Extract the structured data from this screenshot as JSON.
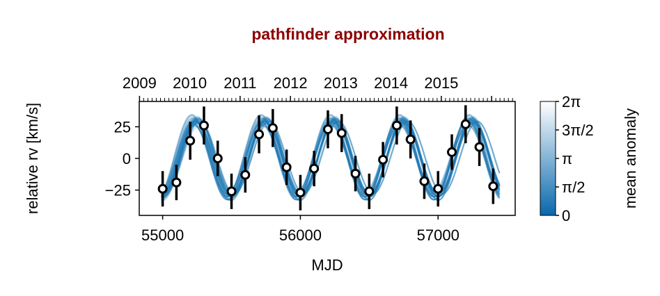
{
  "chart_data": {
    "type": "scatter",
    "title": "pathfinder approximation",
    "xlabel": "MJD",
    "ylabel": "relative rv [km/s]",
    "xlim": [
      54830,
      57560
    ],
    "ylim": [
      -45,
      45
    ],
    "x_ticks": [
      "55000",
      "56000",
      "57000"
    ],
    "y_ticks": [
      "−25",
      "0",
      "25"
    ],
    "secondary_x_ticks": [
      "2009",
      "2010",
      "2011",
      "2012",
      "2013",
      "2014",
      "2015"
    ],
    "colorbar": {
      "label": "mean anomaly",
      "ticks": [
        "0",
        "π/2",
        "π",
        "3π/2",
        "2π"
      ],
      "colors": [
        "#0868ac",
        "#ffffff"
      ]
    },
    "model_curves": {
      "count": 24,
      "color": "#1f78b4",
      "period_days": 500,
      "amplitude": 30
    },
    "series": [
      {
        "marker": "white circle with black error bar",
        "x": [
          55000,
          55100,
          55200,
          55300,
          55400,
          55500,
          55600,
          55700,
          55800,
          55900,
          56000,
          56100,
          56200,
          56300,
          56400,
          56500,
          56600,
          56700,
          56800,
          56900,
          57000,
          57100,
          57200,
          57300,
          57400
        ],
        "y": [
          -24,
          -19,
          14,
          26,
          0,
          -26,
          -13,
          19,
          24,
          -7,
          -27,
          -8,
          23,
          20,
          -12,
          -26,
          -1,
          26,
          15,
          -18,
          -24,
          5,
          27,
          9,
          -22
        ],
        "yerr": [
          14,
          14,
          15,
          15,
          14,
          14,
          14,
          15,
          15,
          14,
          14,
          14,
          15,
          15,
          14,
          14,
          14,
          15,
          15,
          14,
          14,
          14,
          15,
          15,
          14
        ]
      }
    ]
  }
}
